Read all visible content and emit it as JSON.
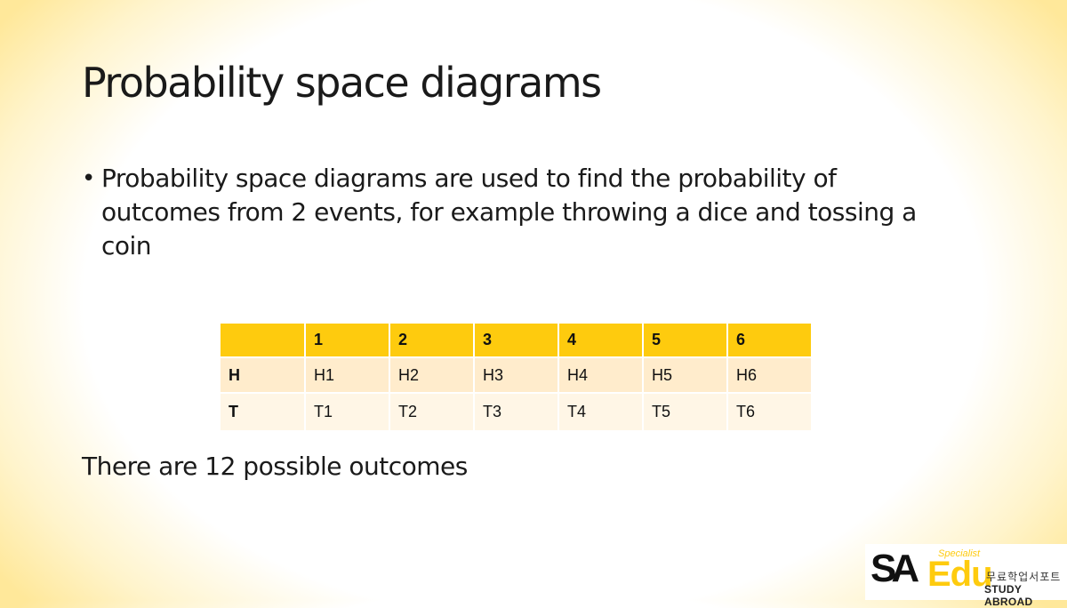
{
  "slide": {
    "title": "Probability space diagrams",
    "bullet": "Probability space diagrams are used to find the probability of outcomes from 2 events, for example throwing a dice and tossing a coin",
    "summary": "There are 12 possible outcomes"
  },
  "table": {
    "header": [
      "",
      "1",
      "2",
      "3",
      "4",
      "5",
      "6"
    ],
    "rows": [
      [
        "H",
        "H1",
        "H2",
        "H3",
        "H4",
        "H5",
        "H6"
      ],
      [
        "T",
        "T1",
        "T2",
        "T3",
        "T4",
        "T5",
        "T6"
      ]
    ]
  },
  "logo": {
    "sa": "SA",
    "edu": "Edu",
    "specialist": "Specialist",
    "korean": "무료학업서포트",
    "tagline": "STUDY ABROAD"
  },
  "colors": {
    "accent": "#fecb0e",
    "row_a": "#ffeccc",
    "row_b": "#fff6e6"
  }
}
